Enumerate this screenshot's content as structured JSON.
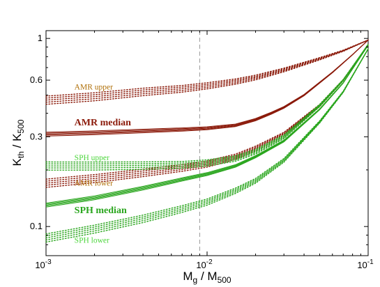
{
  "chart_data": {
    "type": "line",
    "title": "",
    "xlabel": {
      "main": "M",
      "sub1": "g",
      "mid": " / M",
      "sub2": "500"
    },
    "ylabel": {
      "main": "K",
      "sub1": "th",
      "mid": " / K",
      "sub2": "500"
    },
    "xscale": "log",
    "yscale": "log",
    "xlim": [
      0.001,
      0.1
    ],
    "ylim": [
      0.07,
      1.1
    ],
    "grid": false,
    "legend": "none",
    "x_ticks": [
      {
        "value": 0.001,
        "base": "10",
        "exp": "-3"
      },
      {
        "value": 0.01,
        "base": "10",
        "exp": "-2"
      },
      {
        "value": 0.1,
        "base": "10",
        "exp": "-1"
      }
    ],
    "y_ticks": [
      {
        "value": 0.1,
        "label": "0.1"
      },
      {
        "value": 0.3,
        "label": "0.3"
      },
      {
        "value": 0.6,
        "label": "0.6"
      },
      {
        "value": 1,
        "label": "1"
      }
    ],
    "reference_line": {
      "x": 0.009,
      "style": "dashed",
      "color": "#999999"
    },
    "colors": {
      "amr": "#8b1a0a",
      "sph": "#2aa61e"
    },
    "series": [
      {
        "name": "AMR upper",
        "color": "#8b1a0a",
        "style": "dotted",
        "label_color": "#b0700a",
        "x": [
          0.001,
          0.002,
          0.004,
          0.007,
          0.01,
          0.015,
          0.02,
          0.03,
          0.05,
          0.07,
          0.1
        ],
        "y": [
          0.47,
          0.49,
          0.52,
          0.54,
          0.56,
          0.59,
          0.62,
          0.68,
          0.78,
          0.86,
          0.98
        ]
      },
      {
        "name": "AMR median",
        "color": "#8b1a0a",
        "style": "solid",
        "label_color": "#8b1a0a",
        "x": [
          0.001,
          0.002,
          0.004,
          0.007,
          0.01,
          0.015,
          0.02,
          0.025,
          0.03,
          0.04,
          0.06,
          0.08,
          0.1
        ],
        "y": [
          0.31,
          0.315,
          0.322,
          0.328,
          0.333,
          0.345,
          0.37,
          0.4,
          0.43,
          0.5,
          0.66,
          0.82,
          0.98
        ]
      },
      {
        "name": "AMR lower",
        "color": "#8b1a0a",
        "style": "dotted",
        "label_color": "#b0700a",
        "x": [
          0.001,
          0.002,
          0.004,
          0.007,
          0.01,
          0.015,
          0.02,
          0.03,
          0.05,
          0.07,
          0.1
        ],
        "y": [
          0.17,
          0.18,
          0.193,
          0.205,
          0.215,
          0.235,
          0.26,
          0.31,
          0.44,
          0.6,
          0.92
        ]
      },
      {
        "name": "SPH upper",
        "color": "#2aa61e",
        "style": "dotted",
        "label_color": "#4cd63c",
        "x": [
          0.001,
          0.002,
          0.004,
          0.007,
          0.01,
          0.015,
          0.02,
          0.03,
          0.05,
          0.07,
          0.1
        ],
        "y": [
          0.21,
          0.21,
          0.211,
          0.213,
          0.218,
          0.23,
          0.25,
          0.3,
          0.44,
          0.6,
          0.93
        ]
      },
      {
        "name": "SPH median",
        "color": "#2aa61e",
        "style": "solid",
        "label_color": "#2aa61e",
        "x": [
          0.001,
          0.002,
          0.004,
          0.007,
          0.01,
          0.015,
          0.02,
          0.03,
          0.05,
          0.07,
          0.1
        ],
        "y": [
          0.13,
          0.142,
          0.16,
          0.178,
          0.19,
          0.21,
          0.235,
          0.285,
          0.42,
          0.58,
          0.92
        ]
      },
      {
        "name": "SPH lower",
        "color": "#2aa61e",
        "style": "dotted",
        "label_color": "#4cd63c",
        "x": [
          0.001,
          0.002,
          0.004,
          0.007,
          0.01,
          0.015,
          0.02,
          0.03,
          0.05,
          0.07,
          0.1
        ],
        "y": [
          0.087,
          0.097,
          0.11,
          0.124,
          0.135,
          0.155,
          0.175,
          0.225,
          0.36,
          0.52,
          0.88
        ]
      }
    ],
    "annotations": [
      {
        "text": "AMR upper",
        "x": 0.0015,
        "y": 0.535,
        "color": "#b0700a",
        "weight": "normal"
      },
      {
        "text": "AMR median",
        "x": 0.0015,
        "y": 0.345,
        "color": "#8b1a0a",
        "weight": "bold"
      },
      {
        "text": "SPH upper",
        "x": 0.0015,
        "y": 0.225,
        "color": "#4cd63c",
        "weight": "normal"
      },
      {
        "text": "AMR lower",
        "x": 0.0015,
        "y": 0.165,
        "color": "#b0700a",
        "weight": "normal"
      },
      {
        "text": "SPH median",
        "x": 0.0015,
        "y": 0.118,
        "color": "#2aa61e",
        "weight": "bold"
      },
      {
        "text": "SPH lower",
        "x": 0.0015,
        "y": 0.082,
        "color": "#4cd63c",
        "weight": "normal"
      }
    ]
  }
}
